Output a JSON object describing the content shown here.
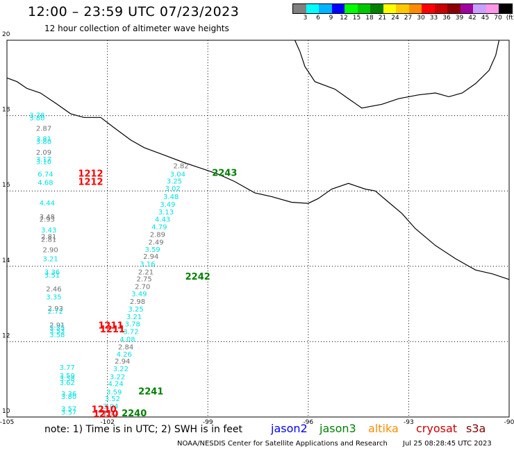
{
  "header": {
    "title": "12:00 – 23:59 UTC 07/23/2023",
    "subtitle": "12 hour collection of altimeter wave heights"
  },
  "legend": {
    "colors": [
      "#808080",
      "#00ffff",
      "#00b4ff",
      "#0000ff",
      "#00ff00",
      "#00c800",
      "#008000",
      "#ffff00",
      "#ffc800",
      "#ff8c00",
      "#ff0000",
      "#c80000",
      "#8b0000",
      "#a000a0",
      "#c8a0ff",
      "#ff96e6",
      "#000000"
    ],
    "labels": [
      "3",
      "6",
      "9",
      "12",
      "15",
      "18",
      "21",
      "24",
      "27",
      "30",
      "33",
      "36",
      "39",
      "42",
      "45",
      "70",
      "(ft)"
    ]
  },
  "map": {
    "lon_range": [
      -105,
      -90
    ],
    "lat_range": [
      10,
      20
    ],
    "lon_ticks": [
      "-105",
      "-102",
      "-99",
      "-96",
      "-93",
      "-90"
    ],
    "lat_ticks": [
      "20",
      "18",
      "16",
      "14",
      "12",
      "10"
    ],
    "coastline": [
      [
        -105,
        19.0
      ],
      [
        -104.7,
        18.9
      ],
      [
        -104.4,
        18.72
      ],
      [
        -104.0,
        18.6
      ],
      [
        -103.5,
        18.3
      ],
      [
        -103.1,
        18.05
      ],
      [
        -102.7,
        17.95
      ],
      [
        -102.2,
        17.95
      ],
      [
        -101.8,
        17.68
      ],
      [
        -101.3,
        17.35
      ],
      [
        -100.9,
        17.15
      ],
      [
        -100.3,
        16.95
      ],
      [
        -99.7,
        16.75
      ],
      [
        -99.2,
        16.6
      ],
      [
        -98.7,
        16.45
      ],
      [
        -98.2,
        16.25
      ],
      [
        -97.6,
        15.95
      ],
      [
        -97.1,
        15.85
      ],
      [
        -96.5,
        15.7
      ],
      [
        -96.0,
        15.67
      ],
      [
        -95.7,
        15.8
      ],
      [
        -95.3,
        16.05
      ],
      [
        -94.8,
        16.2
      ],
      [
        -94.3,
        16.05
      ],
      [
        -94.0,
        16.0
      ],
      [
        -93.6,
        15.7
      ],
      [
        -93.2,
        15.4
      ],
      [
        -92.8,
        15.0
      ],
      [
        -92.2,
        14.55
      ],
      [
        -91.6,
        14.2
      ],
      [
        -91.0,
        13.9
      ],
      [
        -90.5,
        13.8
      ],
      [
        -90.0,
        13.65
      ]
    ],
    "gulf_coast": [
      [
        -96.4,
        20
      ],
      [
        -96.25,
        19.7
      ],
      [
        -96.1,
        19.3
      ],
      [
        -95.8,
        18.9
      ],
      [
        -95.2,
        18.7
      ],
      [
        -94.8,
        18.45
      ],
      [
        -94.4,
        18.2
      ],
      [
        -93.8,
        18.3
      ],
      [
        -93.3,
        18.45
      ],
      [
        -92.7,
        18.55
      ],
      [
        -92.2,
        18.6
      ],
      [
        -91.8,
        18.5
      ],
      [
        -91.4,
        18.6
      ],
      [
        -91.0,
        18.85
      ],
      [
        -90.6,
        19.2
      ],
      [
        -90.4,
        19.6
      ],
      [
        -90.3,
        20
      ]
    ],
    "passes": [
      {
        "satellite": "cryosat",
        "color": "#ff0000",
        "labels": [
          {
            "lon": -102.5,
            "lat": 16.38,
            "text": "1212"
          },
          {
            "lon": -102.5,
            "lat": 16.16,
            "text": "1212"
          },
          {
            "lon": -101.9,
            "lat": 12.35,
            "text": "1211"
          },
          {
            "lon": -101.85,
            "lat": 12.25,
            "text": "1211"
          },
          {
            "lon": -102.1,
            "lat": 10.12,
            "text": "1210"
          },
          {
            "lon": -102.05,
            "lat": 10.0,
            "text": "1210"
          }
        ]
      },
      {
        "satellite": "jason3",
        "color": "#008000",
        "labels": [
          {
            "lon": -98.5,
            "lat": 16.4,
            "text": "2243"
          },
          {
            "lon": -99.3,
            "lat": 13.65,
            "text": "2242"
          },
          {
            "lon": -100.7,
            "lat": 10.6,
            "text": "2241"
          },
          {
            "lon": -101.2,
            "lat": 10.02,
            "text": "2240"
          }
        ]
      }
    ],
    "swh": [
      {
        "lon": -104.1,
        "lat": 17.95,
        "text": "3.78",
        "color": "#00e0e0"
      },
      {
        "lon": -104.1,
        "lat": 17.87,
        "text": "3.80",
        "color": "#00e0e0"
      },
      {
        "lon": -103.9,
        "lat": 17.6,
        "text": "2.87",
        "color": "#707070"
      },
      {
        "lon": -103.9,
        "lat": 17.32,
        "text": "3.81",
        "color": "#00e0e0"
      },
      {
        "lon": -103.9,
        "lat": 17.25,
        "text": "3.80",
        "color": "#00e0e0"
      },
      {
        "lon": -103.9,
        "lat": 16.96,
        "text": "2.09",
        "color": "#707070"
      },
      {
        "lon": -103.9,
        "lat": 16.78,
        "text": "3.17",
        "color": "#00e0e0"
      },
      {
        "lon": -103.9,
        "lat": 16.71,
        "text": "3.10",
        "color": "#00e0e0"
      },
      {
        "lon": -103.85,
        "lat": 16.38,
        "text": "6.74",
        "color": "#00e0e0"
      },
      {
        "lon": -103.85,
        "lat": 16.16,
        "text": "4.68",
        "color": "#00e0e0"
      },
      {
        "lon": -103.8,
        "lat": 15.62,
        "text": "4.44",
        "color": "#00e0e0"
      },
      {
        "lon": -103.8,
        "lat": 15.25,
        "text": "3.48",
        "color": "#707070"
      },
      {
        "lon": -103.8,
        "lat": 15.18,
        "text": "2.93",
        "color": "#707070"
      },
      {
        "lon": -103.75,
        "lat": 14.9,
        "text": "3.43",
        "color": "#00e0e0"
      },
      {
        "lon": -103.75,
        "lat": 14.72,
        "text": "2.81",
        "color": "#707070"
      },
      {
        "lon": -103.75,
        "lat": 14.65,
        "text": "2.81",
        "color": "#707070"
      },
      {
        "lon": -103.7,
        "lat": 14.37,
        "text": "2.90",
        "color": "#707070"
      },
      {
        "lon": -103.7,
        "lat": 14.13,
        "text": "3.21",
        "color": "#00e0e0"
      },
      {
        "lon": -103.65,
        "lat": 13.78,
        "text": "3.36",
        "color": "#00e0e0"
      },
      {
        "lon": -103.65,
        "lat": 13.7,
        "text": "3.51",
        "color": "#00e0e0"
      },
      {
        "lon": -103.6,
        "lat": 13.33,
        "text": "2.46",
        "color": "#707070"
      },
      {
        "lon": -103.6,
        "lat": 13.12,
        "text": "3.35",
        "color": "#00e0e0"
      },
      {
        "lon": -103.55,
        "lat": 12.82,
        "text": "2.93",
        "color": "#707070"
      },
      {
        "lon": -103.55,
        "lat": 12.74,
        "text": "2.72",
        "color": "#00e0e0"
      },
      {
        "lon": -103.5,
        "lat": 12.38,
        "text": "2.91",
        "color": "#707070"
      },
      {
        "lon": -103.5,
        "lat": 12.3,
        "text": "3.55",
        "color": "#00e0e0"
      },
      {
        "lon": -103.5,
        "lat": 12.22,
        "text": "3.53",
        "color": "#00e0e0"
      },
      {
        "lon": -103.5,
        "lat": 12.12,
        "text": "3.58",
        "color": "#00e0e0"
      },
      {
        "lon": -103.2,
        "lat": 11.25,
        "text": "3.77",
        "color": "#00e0e0"
      },
      {
        "lon": -103.2,
        "lat": 11.03,
        "text": "3.59",
        "color": "#00e0e0"
      },
      {
        "lon": -103.2,
        "lat": 10.96,
        "text": "3.58",
        "color": "#00e0e0"
      },
      {
        "lon": -103.2,
        "lat": 10.85,
        "text": "3.62",
        "color": "#00e0e0"
      },
      {
        "lon": -103.15,
        "lat": 10.55,
        "text": "3.36",
        "color": "#00e0e0"
      },
      {
        "lon": -103.15,
        "lat": 10.48,
        "text": "3.80",
        "color": "#00e0e0"
      },
      {
        "lon": -103.15,
        "lat": 10.16,
        "text": "3.57",
        "color": "#00e0e0"
      },
      {
        "lon": -103.15,
        "lat": 10.06,
        "text": "3.57",
        "color": "#00e0e0"
      },
      {
        "lon": -99.8,
        "lat": 16.6,
        "text": "2.82",
        "color": "#707070"
      },
      {
        "lon": -99.9,
        "lat": 16.38,
        "text": "3.04",
        "color": "#00e0e0"
      },
      {
        "lon": -100.0,
        "lat": 16.2,
        "text": "3.25",
        "color": "#00e0e0"
      },
      {
        "lon": -100.05,
        "lat": 16.0,
        "text": "3.02",
        "color": "#00e0e0"
      },
      {
        "lon": -100.1,
        "lat": 15.78,
        "text": "3.48",
        "color": "#00e0e0"
      },
      {
        "lon": -100.2,
        "lat": 15.58,
        "text": "3.49",
        "color": "#00e0e0"
      },
      {
        "lon": -100.25,
        "lat": 15.38,
        "text": "3.13",
        "color": "#00e0e0"
      },
      {
        "lon": -100.35,
        "lat": 15.18,
        "text": "4.43",
        "color": "#00e0e0"
      },
      {
        "lon": -100.45,
        "lat": 14.98,
        "text": "4.79",
        "color": "#00e0e0"
      },
      {
        "lon": -100.5,
        "lat": 14.78,
        "text": "2.89",
        "color": "#707070"
      },
      {
        "lon": -100.55,
        "lat": 14.58,
        "text": "2.49",
        "color": "#707070"
      },
      {
        "lon": -100.65,
        "lat": 14.38,
        "text": "3.59",
        "color": "#00e0e0"
      },
      {
        "lon": -100.7,
        "lat": 14.2,
        "text": "2.94",
        "color": "#707070"
      },
      {
        "lon": -100.8,
        "lat": 14.0,
        "text": "3.16",
        "color": "#00e0e0"
      },
      {
        "lon": -100.85,
        "lat": 13.78,
        "text": "2.21",
        "color": "#707070"
      },
      {
        "lon": -100.9,
        "lat": 13.6,
        "text": "2.75",
        "color": "#707070"
      },
      {
        "lon": -100.95,
        "lat": 13.4,
        "text": "2.70",
        "color": "#707070"
      },
      {
        "lon": -101.05,
        "lat": 13.2,
        "text": "3.49",
        "color": "#00e0e0"
      },
      {
        "lon": -101.1,
        "lat": 13.0,
        "text": "2.98",
        "color": "#707070"
      },
      {
        "lon": -101.15,
        "lat": 12.8,
        "text": "3.25",
        "color": "#00e0e0"
      },
      {
        "lon": -101.2,
        "lat": 12.6,
        "text": "3.21",
        "color": "#00e0e0"
      },
      {
        "lon": -101.25,
        "lat": 12.4,
        "text": "3.78",
        "color": "#00e0e0"
      },
      {
        "lon": -101.3,
        "lat": 12.2,
        "text": "3.72",
        "color": "#00e0e0"
      },
      {
        "lon": -101.4,
        "lat": 12.0,
        "text": "4.08",
        "color": "#00e0e0"
      },
      {
        "lon": -101.45,
        "lat": 11.8,
        "text": "2.84",
        "color": "#707070"
      },
      {
        "lon": -101.5,
        "lat": 11.6,
        "text": "4.26",
        "color": "#00e0e0"
      },
      {
        "lon": -101.55,
        "lat": 11.42,
        "text": "2.94",
        "color": "#707070"
      },
      {
        "lon": -101.6,
        "lat": 11.22,
        "text": "3.22",
        "color": "#00e0e0"
      },
      {
        "lon": -101.7,
        "lat": 11.0,
        "text": "3.22",
        "color": "#00e0e0"
      },
      {
        "lon": -101.75,
        "lat": 10.82,
        "text": "4.24",
        "color": "#00e0e0"
      },
      {
        "lon": -101.8,
        "lat": 10.6,
        "text": "3.59",
        "color": "#00e0e0"
      },
      {
        "lon": -101.85,
        "lat": 10.42,
        "text": "3.52",
        "color": "#00e0e0"
      },
      {
        "lon": -101.9,
        "lat": 10.22,
        "text": "3.04",
        "color": "#00e0e0"
      },
      {
        "lon": -101.9,
        "lat": 10.05,
        "text": "2.92",
        "color": "#707070"
      }
    ]
  },
  "footer": {
    "note": "note: 1) Time is in UTC; 2) SWH is in feet",
    "satellites": [
      {
        "name": "jason2",
        "color": "#0000ff"
      },
      {
        "name": "jason3",
        "color": "#008000"
      },
      {
        "name": "altika",
        "color": "#ff8c00"
      },
      {
        "name": "cryosat",
        "color": "#cc0000"
      },
      {
        "name": "s3a",
        "color": "#800000"
      }
    ],
    "credit": "NOAA/NESDIS Center for Satellite Applications and Research",
    "timestamp": "Jul 25 08:28:45 UTC 2023"
  }
}
